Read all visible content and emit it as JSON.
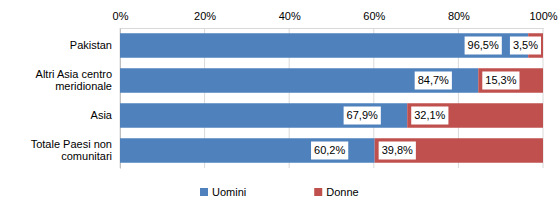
{
  "chart_data": {
    "type": "bar",
    "orientation": "horizontal",
    "stacked": true,
    "data_labels": true,
    "grid": true,
    "legend": "bottom",
    "categories": [
      "Pakistan",
      "Altri Asia centro meridionale",
      "Asia",
      "Totale Paesi non comunitari"
    ],
    "series": [
      {
        "name": "Uomini",
        "color": "#4f81bd",
        "values": [
          96.5,
          84.7,
          67.9,
          60.2
        ],
        "value_labels": [
          "96,5%",
          "84,7%",
          "67,9%",
          "60,2%"
        ]
      },
      {
        "name": "Donne",
        "color": "#c0504d",
        "values": [
          3.5,
          15.3,
          32.1,
          39.8
        ],
        "value_labels": [
          "3,5%",
          "15,3%",
          "32,1%",
          "39,8%"
        ]
      }
    ],
    "xlim": [
      0,
      100
    ],
    "xticks": [
      {
        "value": 0,
        "label": "0%"
      },
      {
        "value": 20,
        "label": "20%"
      },
      {
        "value": 40,
        "label": "40%"
      },
      {
        "value": 60,
        "label": "60%"
      },
      {
        "value": 80,
        "label": "80%"
      },
      {
        "value": 100,
        "label": "100%"
      }
    ]
  }
}
